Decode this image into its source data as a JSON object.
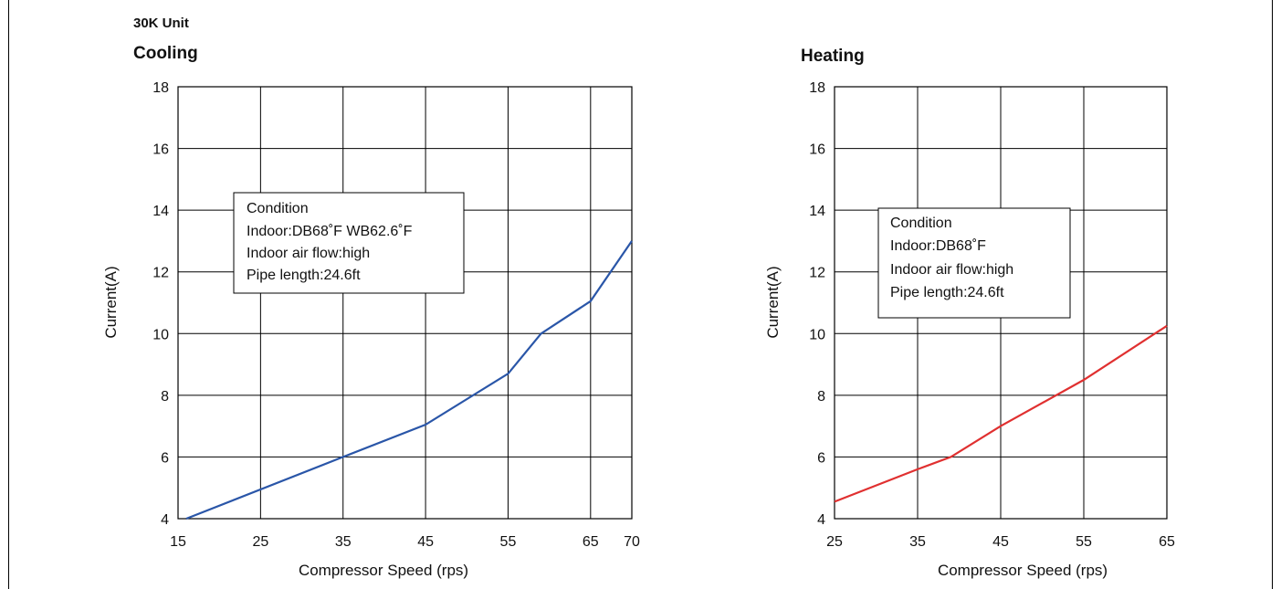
{
  "figure": {
    "unit_label": "30K Unit"
  },
  "chart_data": [
    {
      "type": "line",
      "title": "Cooling",
      "xlabel": "Compressor Speed (rps)",
      "ylabel": "Current(A)",
      "xticks": [
        15,
        25,
        35,
        45,
        55,
        65,
        70
      ],
      "yticks": [
        4,
        6,
        8,
        10,
        12,
        14,
        16,
        18
      ],
      "xlim": [
        15,
        70
      ],
      "ylim": [
        4,
        18
      ],
      "grid": true,
      "line_color": "#2a56a8",
      "series": [
        {
          "x": [
            16,
            35,
            45,
            55,
            59,
            65,
            70
          ],
          "y": [
            4,
            6,
            7.05,
            8.7,
            10,
            11.05,
            13
          ]
        }
      ],
      "annotation": {
        "lines": [
          "Condition",
          "Indoor:DB68˚F WB62.6˚F",
          "Indoor air flow:high",
          "Pipe length:24.6ft"
        ]
      }
    },
    {
      "type": "line",
      "title": "Heating",
      "xlabel": "Compressor Speed (rps)",
      "ylabel": "Current(A)",
      "xticks": [
        25,
        35,
        45,
        55,
        65
      ],
      "yticks": [
        4,
        6,
        8,
        10,
        12,
        14,
        16,
        18
      ],
      "xlim": [
        25,
        65
      ],
      "ylim": [
        4,
        18
      ],
      "grid": true,
      "line_color": "#e03030",
      "series": [
        {
          "x": [
            25,
            35,
            39,
            45,
            55,
            65
          ],
          "y": [
            4.55,
            5.6,
            6,
            7,
            8.5,
            10.25
          ]
        }
      ],
      "annotation": {
        "lines": [
          "Condition",
          "Indoor:DB68˚F",
          "Indoor air flow:high",
          "Pipe length:24.6ft"
        ]
      }
    }
  ]
}
